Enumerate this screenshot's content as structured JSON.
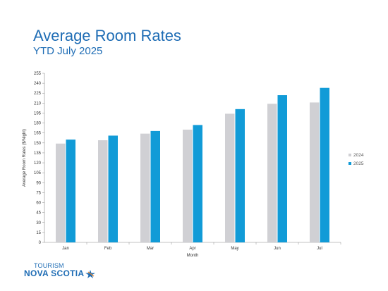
{
  "header": {
    "title": "Average Room Rates",
    "subtitle": "YTD July 2025"
  },
  "logo": {
    "line1": "TOURISM",
    "line2": "NOVA SCOTIA"
  },
  "colors": {
    "title": "#1f6db5",
    "series_2024": "#d0d0d4",
    "series_2025": "#119bd7"
  },
  "chart_data": {
    "type": "bar",
    "categories": [
      "Jan",
      "Feb",
      "Mar",
      "Apr",
      "May",
      "Jun",
      "Jul"
    ],
    "series": [
      {
        "name": "2024",
        "values": [
          149,
          154,
          164,
          170,
          194,
          209,
          211
        ],
        "color": "#d0d0d4"
      },
      {
        "name": "2025",
        "values": [
          155,
          161,
          168,
          177,
          201,
          222,
          233
        ],
        "color": "#119bd7"
      }
    ],
    "xlabel": "Month",
    "ylabel": "Average Room Rates ($/Night)",
    "ylim": [
      0,
      255
    ],
    "yticks": [
      0,
      15,
      30,
      45,
      60,
      75,
      90,
      105,
      120,
      135,
      150,
      165,
      180,
      195,
      210,
      225,
      240,
      255
    ],
    "grid": false,
    "legend_position": "right"
  }
}
